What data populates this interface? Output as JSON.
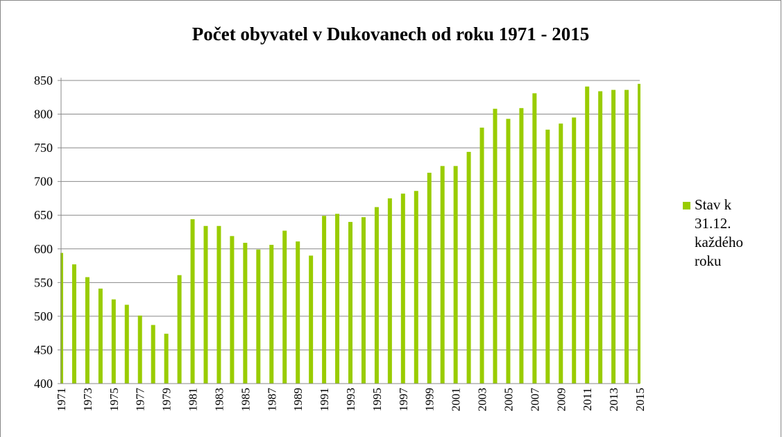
{
  "chart_data": {
    "type": "bar",
    "title": "Počet obyvatel v Dukovanech od roku 1971 - 2015",
    "categories": [
      "1971",
      null,
      "1973",
      null,
      "1975",
      null,
      "1977",
      null,
      "1979",
      null,
      "1981",
      null,
      "1983",
      null,
      "1985",
      null,
      "1987",
      null,
      "1989",
      null,
      "1991",
      null,
      "1993",
      null,
      "1995",
      null,
      "1997",
      null,
      "1999",
      null,
      "2001",
      null,
      "2003",
      null,
      "2005",
      null,
      "2007",
      null,
      "2009",
      null,
      "2011",
      null,
      "2013",
      null,
      "2015"
    ],
    "series": [
      {
        "name": "Stav k 31.12. každého roku",
        "color": "#99cc00",
        "values": [
          594,
          577,
          558,
          541,
          525,
          517,
          501,
          487,
          474,
          561,
          644,
          634,
          634,
          619,
          609,
          599,
          606,
          627,
          611,
          590,
          649,
          652,
          640,
          647,
          662,
          675,
          682,
          686,
          713,
          723,
          723,
          744,
          780,
          808,
          793,
          809,
          831,
          777,
          786,
          795,
          841,
          834,
          836,
          836,
          845
        ]
      }
    ],
    "ylim": [
      400,
      850
    ],
    "yticks": [
      400,
      450,
      500,
      550,
      600,
      650,
      700,
      750,
      800,
      850
    ],
    "grid": true,
    "legend": "right"
  }
}
